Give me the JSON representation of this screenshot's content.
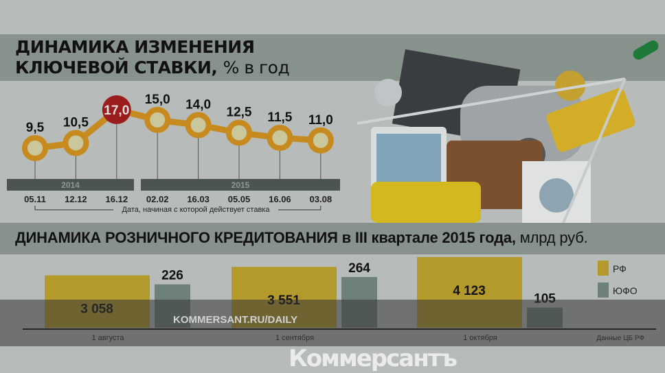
{
  "top_title": {
    "line1": "ДИНАМИКА ИЗМЕНЕНИЯ",
    "line2_bold": "КЛЮЧЕВОЙ СТАВКИ,",
    "line2_light": "% в год"
  },
  "bottom_title": {
    "bold": "ДИНАМИКА РОЗНИЧНОГО КРЕДИТОВАНИЯ в III квартале 2015 года,",
    "light": "млрд руб."
  },
  "watermark": {
    "brand": "Коммерсантъ",
    "url": "KOMMERSANT.RU/DAILY"
  },
  "colors": {
    "line": "#c78a1e",
    "point_fill": "#cbc79c",
    "highlight": "#9b1c1c",
    "rf": "#b39a2a",
    "ufo": "#6e807a",
    "year_bar": "#4a5450"
  },
  "chart_data": [
    {
      "type": "line",
      "title": "ДИНАМИКА ИЗМЕНЕНИЯ КЛЮЧЕВОЙ СТАВКИ, % в год",
      "x": [
        "05.11",
        "12.12",
        "16.12",
        "02.02",
        "16.03",
        "05.05",
        "16.06",
        "03.08"
      ],
      "values": [
        9.5,
        10.5,
        17.0,
        15.0,
        14.0,
        12.5,
        11.5,
        11.0
      ],
      "labels": [
        "9,5",
        "10,5",
        "17,0",
        "15,0",
        "14,0",
        "12,5",
        "11,5",
        "11,0"
      ],
      "highlight_index": 2,
      "years": [
        {
          "label": "2014",
          "from": 0,
          "to": 2
        },
        {
          "label": "2015",
          "from": 3,
          "to": 7
        }
      ],
      "xlabel": "Дата, начиная с которой действует ставка"
    },
    {
      "type": "bar",
      "title": "ДИНАМИКА РОЗНИЧНОГО КРЕДИТОВАНИЯ в III квартале 2015 года, млрд руб.",
      "categories": [
        "1 августа",
        "1 сентября",
        "1 октября"
      ],
      "series": [
        {
          "name": "РФ",
          "values": [
            3058,
            3551,
            4123
          ],
          "labels": [
            "3 058",
            "3 551",
            "4 123"
          ]
        },
        {
          "name": "ЮФО",
          "values": [
            226,
            264,
            105
          ],
          "labels": [
            "226",
            "264",
            "105"
          ]
        }
      ],
      "legend": "right",
      "source": "Данные ЦБ РФ"
    }
  ]
}
